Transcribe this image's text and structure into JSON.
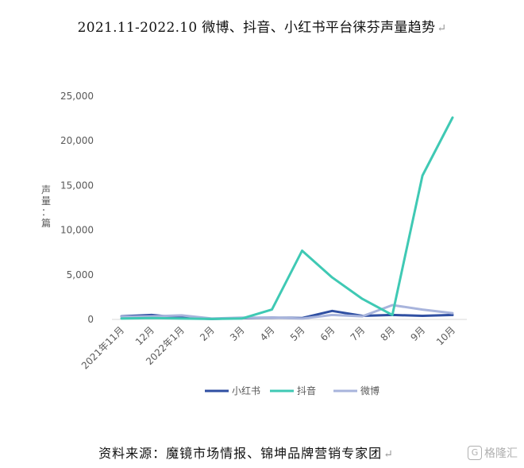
{
  "page": {
    "title": "2021.11-2022.10 微博、抖音、小红书平台徕芬声量趋势",
    "source": "资料来源：魔镜市场情报、锦坤品牌营销专家团",
    "watermark": "格隆汇",
    "watermark_logo": "G"
  },
  "chart_data": {
    "type": "line",
    "title": "",
    "xlabel": "",
    "ylabel": "声量：篇",
    "categories": [
      "2021年11月",
      "12月",
      "2022年1月",
      "2月",
      "3月",
      "4月",
      "5月",
      "6月",
      "7月",
      "8月",
      "9月",
      "10月"
    ],
    "ylim": [
      0,
      25000
    ],
    "yticks": [
      0,
      5000,
      10000,
      15000,
      20000,
      25000
    ],
    "ytick_labels": [
      "0",
      "5,000",
      "10,000",
      "15,000",
      "20,000",
      "25,000"
    ],
    "grid": false,
    "legend_position": "bottom",
    "series": [
      {
        "name": "小红书",
        "color": "#2f4fa2",
        "values": [
          350,
          500,
          200,
          50,
          150,
          200,
          150,
          950,
          400,
          500,
          400,
          500
        ]
      },
      {
        "name": "抖音",
        "color": "#3fc9b4",
        "values": [
          100,
          150,
          100,
          50,
          100,
          1100,
          7700,
          4700,
          2300,
          500,
          16100,
          22600
        ]
      },
      {
        "name": "微博",
        "color": "#a8b4dc",
        "values": [
          300,
          350,
          450,
          100,
          200,
          200,
          100,
          500,
          350,
          1600,
          1100,
          700
        ]
      }
    ]
  }
}
